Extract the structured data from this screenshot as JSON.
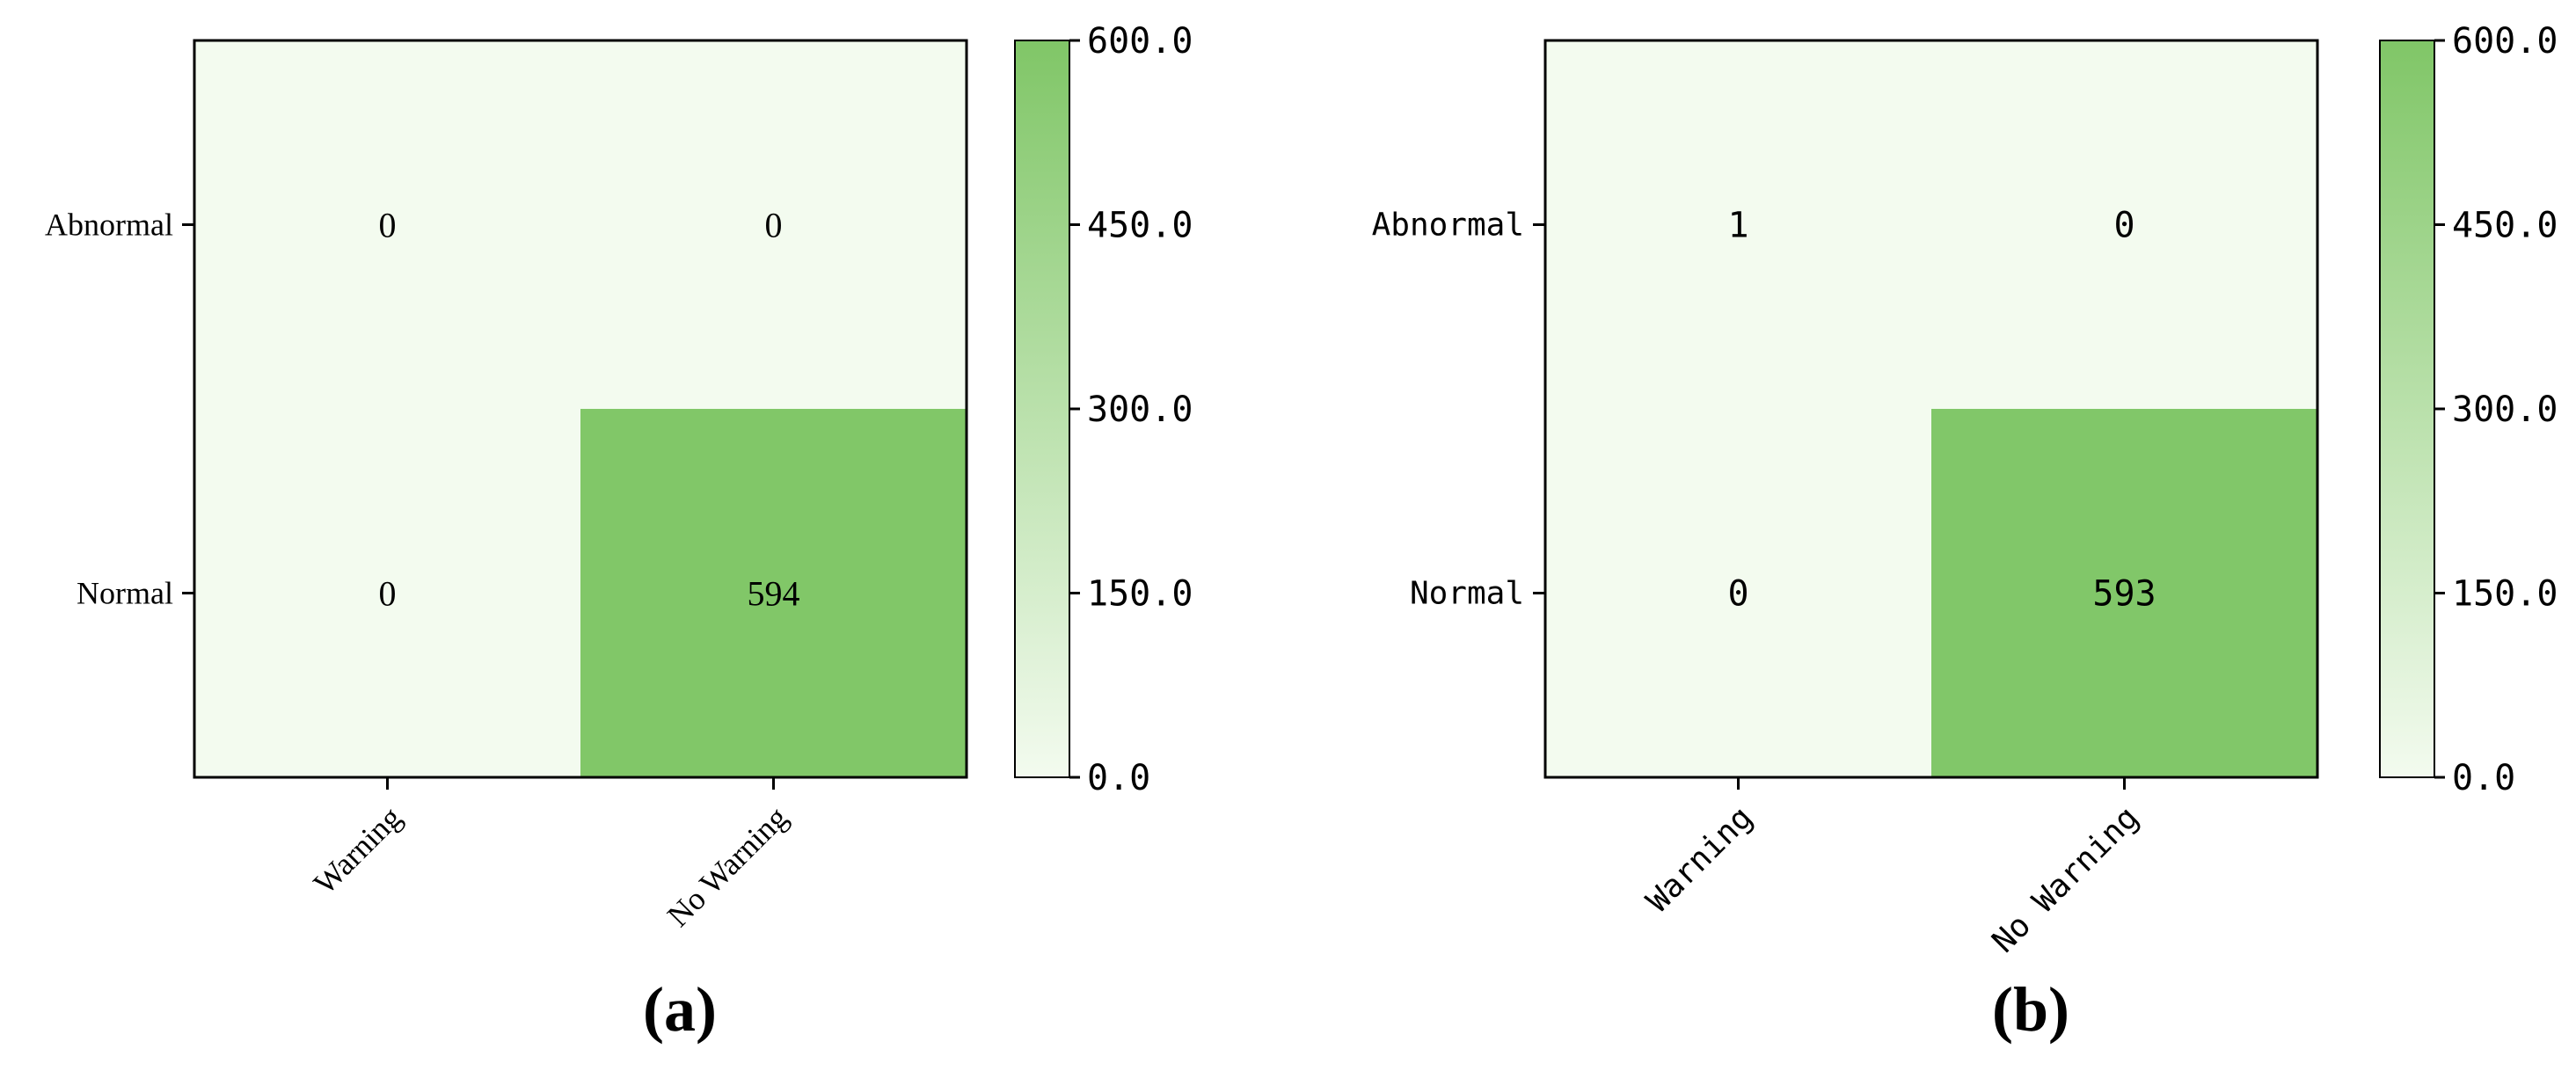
{
  "chart_data": [
    {
      "type": "heatmap",
      "panel_label": "(a)",
      "row_labels": [
        "Abnormal",
        "Normal"
      ],
      "column_labels": [
        "Warning",
        "No Warning"
      ],
      "values": [
        [
          0,
          0
        ],
        [
          0,
          594
        ]
      ],
      "colorbar": {
        "range": [
          0,
          600
        ],
        "ticks": [
          0,
          150,
          300,
          450,
          600
        ],
        "tick_labels": [
          "0.0",
          "150.0",
          "300.0",
          "450.0",
          "600.0"
        ],
        "color_low": "#f3fbef",
        "color_high": "#80c667"
      },
      "label_style": "serif"
    },
    {
      "type": "heatmap",
      "panel_label": "(b)",
      "row_labels": [
        "Abnormal",
        "Normal"
      ],
      "column_labels": [
        "Warning",
        "No Warning"
      ],
      "values": [
        [
          1,
          0
        ],
        [
          0,
          593
        ]
      ],
      "colorbar": {
        "range": [
          0,
          600
        ],
        "ticks": [
          0,
          150,
          300,
          450,
          600
        ],
        "tick_labels": [
          "0.0",
          "150.0",
          "300.0",
          "450.0",
          "600.0"
        ],
        "color_low": "#f3fbef",
        "color_high": "#80c667"
      },
      "label_style": "mono"
    }
  ]
}
